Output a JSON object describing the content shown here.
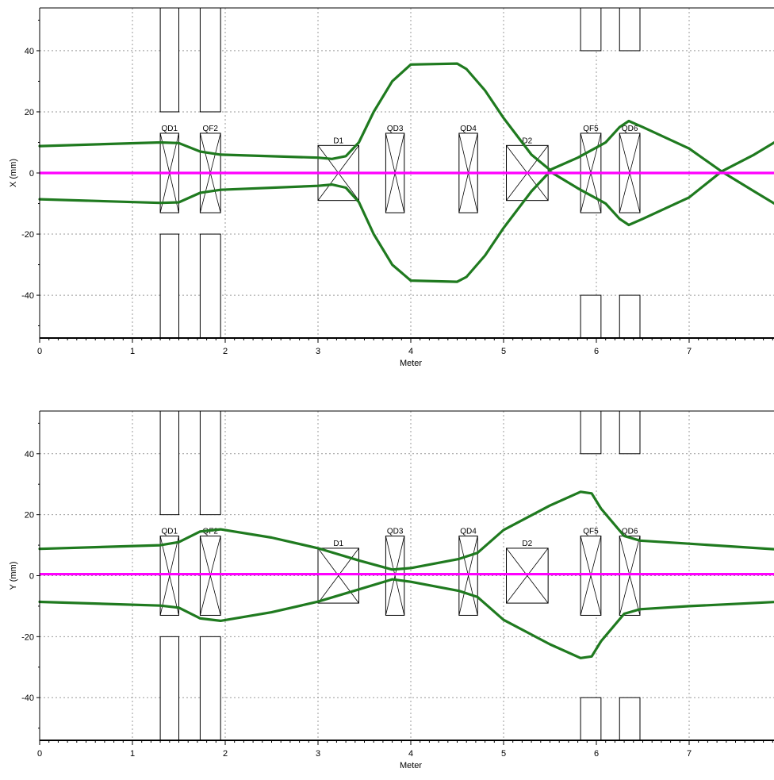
{
  "colors": {
    "envelope": "#1f7a1f",
    "reference": "#ff00ff",
    "grid": "#9a9a9a"
  },
  "chart_data": [
    {
      "type": "line",
      "id": "x-plane",
      "xlabel": "Meter",
      "ylabel": "X (mm)",
      "xlim": [
        0,
        8.0
      ],
      "ylim": [
        -54,
        54
      ],
      "x_ticks": [
        0,
        1,
        2,
        3,
        4,
        5,
        6,
        7
      ],
      "y_ticks": [
        40,
        20,
        0,
        -20,
        -40
      ],
      "grid": true,
      "elements": [
        {
          "name": "QD1",
          "type": "quad",
          "s_start": 1.3,
          "s_end": 1.5,
          "half_height": 13
        },
        {
          "name": "QF2",
          "type": "quad",
          "s_start": 1.73,
          "s_end": 1.95,
          "half_height": 13
        },
        {
          "name": "D1",
          "type": "dipole",
          "s_start": 3.0,
          "s_end": 3.44,
          "half_height": 9
        },
        {
          "name": "QD3",
          "type": "quad",
          "s_start": 3.73,
          "s_end": 3.93,
          "half_height": 13
        },
        {
          "name": "QD4",
          "type": "quad",
          "s_start": 4.52,
          "s_end": 4.72,
          "half_height": 13
        },
        {
          "name": "D2",
          "type": "dipole",
          "s_start": 5.03,
          "s_end": 5.48,
          "half_height": 9
        },
        {
          "name": "QF5",
          "type": "quad",
          "s_start": 5.83,
          "s_end": 6.05,
          "half_height": 13
        },
        {
          "name": "QD6",
          "type": "quad",
          "s_start": 6.25,
          "s_end": 6.47,
          "half_height": 13
        }
      ],
      "apertures": [
        {
          "s_start": 1.3,
          "s_end": 1.5,
          "upper_from": 20,
          "lower_to": -20
        },
        {
          "s_start": 1.73,
          "s_end": 1.95,
          "upper_from": 20,
          "lower_to": -20
        },
        {
          "s_start": 5.83,
          "s_end": 6.05,
          "upper_from": 40,
          "lower_to": -40
        },
        {
          "s_start": 6.25,
          "s_end": 6.47,
          "upper_from": 40,
          "lower_to": -40
        }
      ],
      "series": [
        {
          "role": "envelope-upper",
          "x": [
            0,
            1.3,
            1.5,
            1.73,
            1.95,
            3.0,
            3.15,
            3.3,
            3.44,
            3.6,
            3.8,
            4.0,
            4.5,
            4.6,
            4.8,
            5.0,
            5.3,
            5.5,
            5.8,
            6.1,
            6.25,
            6.35,
            6.5,
            7.0,
            7.35,
            7.7,
            8.0
          ],
          "y": [
            8.8,
            10,
            9.8,
            7,
            6,
            5,
            4.6,
            5.5,
            10,
            20,
            30,
            35.5,
            35.8,
            34,
            27,
            18,
            6,
            1,
            5,
            10,
            15,
            17,
            15,
            8,
            0.5,
            -6,
            -11.5
          ]
        },
        {
          "role": "envelope-lower",
          "x": [
            0,
            1.3,
            1.5,
            1.73,
            1.95,
            3.0,
            3.15,
            3.3,
            3.44,
            3.6,
            3.8,
            4.0,
            4.5,
            4.6,
            4.8,
            5.0,
            5.3,
            5.5,
            5.8,
            6.1,
            6.25,
            6.35,
            6.5,
            7.0,
            7.35,
            7.7,
            8.0
          ],
          "y": [
            -8.6,
            -9.8,
            -9.6,
            -6.5,
            -5.5,
            -4.2,
            -3.8,
            -4.8,
            -9.5,
            -20,
            -30,
            -35.2,
            -35.6,
            -34,
            -27,
            -18,
            -6,
            0.5,
            -5,
            -10,
            -15,
            -17,
            -15,
            -8,
            0.5,
            6,
            11.5
          ]
        },
        {
          "role": "reference-orbit",
          "x": [
            0,
            8.0
          ],
          "y": [
            0,
            0
          ]
        }
      ]
    },
    {
      "type": "line",
      "id": "y-plane",
      "xlabel": "Meter",
      "ylabel": "Y (mm)",
      "xlim": [
        0,
        8.0
      ],
      "ylim": [
        -54,
        54
      ],
      "x_ticks": [
        0,
        1,
        2,
        3,
        4,
        5,
        6,
        7
      ],
      "y_ticks": [
        40,
        20,
        0,
        -20,
        -40
      ],
      "grid": true,
      "elements": [
        {
          "name": "QD1",
          "type": "quad",
          "s_start": 1.3,
          "s_end": 1.5,
          "half_height": 13
        },
        {
          "name": "QF2",
          "type": "quad",
          "s_start": 1.73,
          "s_end": 1.95,
          "half_height": 13
        },
        {
          "name": "D1",
          "type": "dipole",
          "s_start": 3.0,
          "s_end": 3.44,
          "half_height": 9
        },
        {
          "name": "QD3",
          "type": "quad",
          "s_start": 3.73,
          "s_end": 3.93,
          "half_height": 13
        },
        {
          "name": "QD4",
          "type": "quad",
          "s_start": 4.52,
          "s_end": 4.72,
          "half_height": 13
        },
        {
          "name": "D2",
          "type": "dipole",
          "s_start": 5.03,
          "s_end": 5.48,
          "half_height": 9
        },
        {
          "name": "QF5",
          "type": "quad",
          "s_start": 5.83,
          "s_end": 6.05,
          "half_height": 13
        },
        {
          "name": "QD6",
          "type": "quad",
          "s_start": 6.25,
          "s_end": 6.47,
          "half_height": 13
        }
      ],
      "apertures": [
        {
          "s_start": 1.3,
          "s_end": 1.5,
          "upper_from": 20,
          "lower_to": -20
        },
        {
          "s_start": 1.73,
          "s_end": 1.95,
          "upper_from": 20,
          "lower_to": -20
        },
        {
          "s_start": 5.83,
          "s_end": 6.05,
          "upper_from": 40,
          "lower_to": -40
        },
        {
          "s_start": 6.25,
          "s_end": 6.47,
          "upper_from": 40,
          "lower_to": -40
        }
      ],
      "series": [
        {
          "role": "envelope-upper",
          "x": [
            0,
            1.3,
            1.5,
            1.73,
            1.95,
            2.5,
            3.0,
            3.44,
            3.8,
            4.0,
            4.52,
            4.72,
            5.0,
            5.5,
            5.83,
            5.95,
            6.05,
            6.3,
            6.47,
            7.0,
            8.0
          ],
          "y": [
            8.8,
            10,
            11,
            14.5,
            15.2,
            12.5,
            9,
            5,
            2,
            2.5,
            5.5,
            7.5,
            15,
            23,
            27.5,
            27,
            22,
            13,
            11.5,
            10.5,
            8.5
          ]
        },
        {
          "role": "envelope-lower",
          "x": [
            0,
            1.3,
            1.5,
            1.73,
            1.95,
            2.5,
            3.0,
            3.44,
            3.8,
            4.0,
            4.52,
            4.72,
            5.0,
            5.5,
            5.83,
            5.95,
            6.05,
            6.3,
            6.47,
            7.0,
            8.0
          ],
          "y": [
            -8.6,
            -9.8,
            -10.5,
            -14,
            -14.8,
            -12,
            -8.5,
            -4.5,
            -1.2,
            -2,
            -5,
            -7,
            -14.5,
            -22.5,
            -27,
            -26.5,
            -21.5,
            -12.5,
            -11,
            -10,
            -8.5
          ]
        },
        {
          "role": "reference-orbit",
          "x": [
            0,
            8.0
          ],
          "y": [
            0.5,
            0.5
          ]
        }
      ]
    }
  ]
}
